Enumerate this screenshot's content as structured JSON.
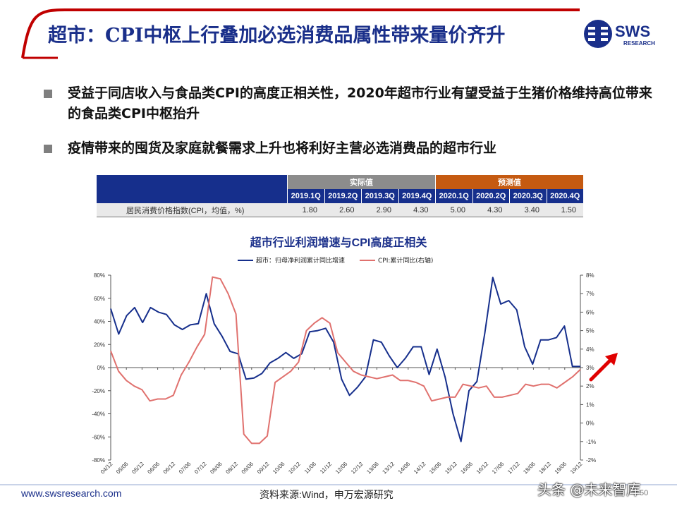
{
  "page": {
    "title": "超市：CPI中枢上行叠加必选消费品属性带来量价齐升",
    "logo_text": "SWS",
    "logo_sub": "RESEARCH",
    "bullets": [
      "受益于同店收入与食品类CPI的高度正相关性，2020年超市行业有望受益于生猪价格维持高位带来的食品类CPI中枢抬升",
      "疫情带来的囤货及家庭就餐需求上升也将利好主营必选消费品的超市行业"
    ],
    "footer_url": "www.swsresearch.com",
    "footer_source": "资料来源:Wind，申万宏源研究",
    "page_number": "50",
    "watermark": "头条 @未来智库"
  },
  "table": {
    "group_actual": "实际值",
    "group_forecast": "预测值",
    "quarters": [
      "2019.1Q",
      "2019.2Q",
      "2019.3Q",
      "2019.4Q",
      "2020.1Q",
      "2020.2Q",
      "2020.3Q",
      "2020.4Q"
    ],
    "row_label": "居民消费价格指数(CPI，均值，%)",
    "values": [
      "1.80",
      "2.60",
      "2.90",
      "4.30",
      "5.00",
      "4.30",
      "3.40",
      "1.50"
    ]
  },
  "colors": {
    "navy": "#162f8c",
    "red": "#e0716e",
    "orange": "#c55a11",
    "gray": "#8c8c8c"
  },
  "chart_data": {
    "type": "line",
    "title": "超市行业利润增速与CPI高度正相关",
    "x_tick_labels": [
      "04/12",
      "05/06",
      "05/12",
      "06/06",
      "06/12",
      "07/06",
      "07/12",
      "08/06",
      "08/12",
      "09/06",
      "09/12",
      "10/06",
      "10/12",
      "11/06",
      "11/12",
      "12/06",
      "12/12",
      "13/06",
      "13/12",
      "14/06",
      "14/12",
      "15/06",
      "15/12",
      "16/06",
      "16/12",
      "17/06",
      "17/12",
      "18/06",
      "18/12",
      "19/06",
      "19/12"
    ],
    "y_left": {
      "ticks": [
        "-80%",
        "-60%",
        "-40%",
        "-20%",
        "0%",
        "20%",
        "40%",
        "60%",
        "80%"
      ],
      "range": [
        -80,
        80
      ]
    },
    "y_right": {
      "ticks": [
        "-2%",
        "-1%",
        "0%",
        "1%",
        "2%",
        "3%",
        "4%",
        "5%",
        "6%",
        "7%",
        "8%"
      ],
      "range": [
        -2,
        8
      ]
    },
    "legend_position": "top",
    "arrow": "red upward arrow at right edge",
    "series": [
      {
        "name": "超市：归母净利润累计同比增速",
        "axis": "left",
        "color": "#162f8c",
        "values": [
          51,
          29,
          45,
          52,
          39,
          52,
          48,
          46,
          37,
          33,
          37,
          38,
          64,
          38,
          27,
          14,
          12,
          -10,
          -9,
          -5,
          4,
          8,
          13,
          8,
          12,
          31,
          32,
          34,
          22,
          -10,
          -24,
          -17,
          -8,
          24,
          22,
          10,
          0,
          8,
          18,
          18,
          -6,
          16,
          -8,
          -40,
          -64,
          -20,
          -12,
          30,
          78,
          55,
          58,
          50,
          18,
          3,
          24,
          24,
          26,
          36,
          1,
          1
        ]
      },
      {
        "name": "CPI:累计同比(右轴)",
        "axis": "right",
        "color": "#e0716e",
        "values": [
          3.9,
          2.8,
          2.3,
          2.0,
          1.8,
          1.2,
          1.3,
          1.3,
          1.5,
          2.6,
          3.3,
          4.1,
          4.8,
          7.9,
          7.8,
          7.0,
          5.9,
          -0.6,
          -1.1,
          -1.1,
          -0.7,
          2.2,
          2.5,
          2.8,
          3.3,
          5.0,
          5.4,
          5.7,
          5.4,
          3.8,
          3.3,
          2.8,
          2.6,
          2.5,
          2.4,
          2.5,
          2.6,
          2.3,
          2.3,
          2.2,
          2.0,
          1.2,
          1.3,
          1.4,
          1.4,
          2.1,
          2.0,
          1.9,
          2.0,
          1.4,
          1.4,
          1.5,
          1.6,
          2.1,
          2.0,
          2.1,
          2.1,
          1.9,
          2.2,
          2.5,
          2.9
        ]
      }
    ]
  }
}
